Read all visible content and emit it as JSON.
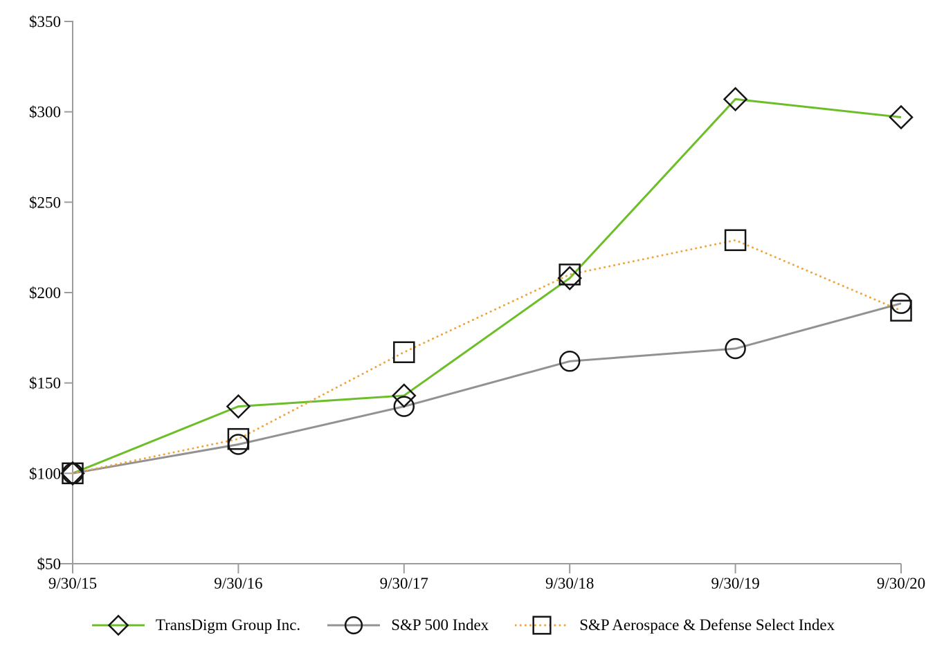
{
  "chart_data": {
    "type": "line",
    "categories": [
      "9/30/15",
      "9/30/16",
      "9/30/17",
      "9/30/18",
      "9/30/19",
      "9/30/20"
    ],
    "series": [
      {
        "name": "TransDigm Group Inc.",
        "marker": "diamond",
        "color": "#6cbe28",
        "line_style": "solid",
        "values": [
          100,
          137,
          143,
          208,
          307,
          297
        ]
      },
      {
        "name": "S&P 500 Index",
        "marker": "circle",
        "color": "#929292",
        "line_style": "solid",
        "values": [
          100,
          116,
          137,
          162,
          169,
          194
        ]
      },
      {
        "name": "S&P Aerospace & Defense Select Index",
        "marker": "square",
        "color": "#f0a43c",
        "line_style": "dotted",
        "values": [
          100,
          119,
          167,
          210,
          229,
          190
        ]
      }
    ],
    "y_ticks": [
      "$350",
      "$300",
      "$250",
      "$200",
      "$150",
      "$100",
      "$50"
    ],
    "y_axis": {
      "min": 50,
      "max": 350,
      "step": 50,
      "prefix": "$"
    },
    "xlabel": "",
    "ylabel": "",
    "title": "",
    "grid": false,
    "legend_position": "bottom",
    "axis_color": "#9b9b9b",
    "marker_stroke": "#141414",
    "text_color": "#000000"
  }
}
